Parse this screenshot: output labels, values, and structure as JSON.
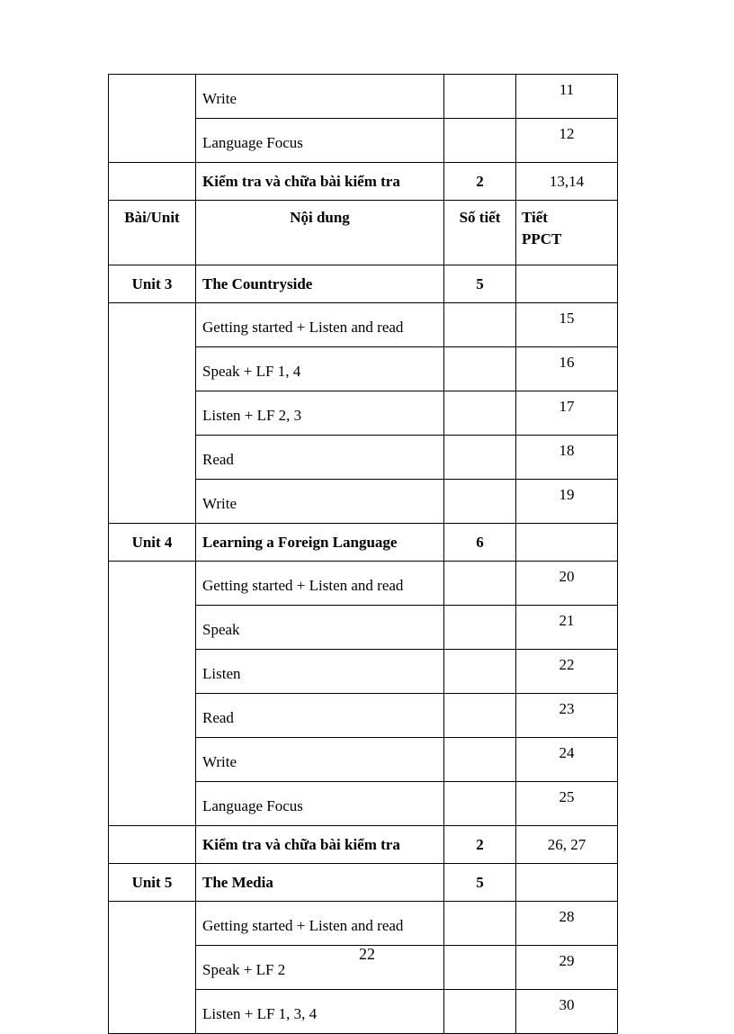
{
  "table": {
    "header": {
      "unit": "Bài/Unit",
      "content": "Nội dung",
      "periods": "Số tiết",
      "ppct_line1": "Tiết",
      "ppct_line2": "PPCT"
    },
    "rows_before_header": [
      {
        "unit": "",
        "content": "Write",
        "bold": false,
        "periods": "",
        "ppct": "11"
      },
      {
        "unit": "",
        "content": "Language Focus",
        "bold": false,
        "periods": "",
        "ppct": "12"
      },
      {
        "unit": "",
        "content": "Kiểm tra và chữa bài kiểm tra",
        "bold": true,
        "periods": "2",
        "ppct": "13,14"
      }
    ],
    "rows": [
      {
        "unit": "Unit 3",
        "content": "The Countryside",
        "bold": true,
        "periods": "5",
        "ppct": ""
      },
      {
        "unit": "",
        "content": "Getting  started + Listen  and read",
        "bold": false,
        "periods": "",
        "ppct": "15"
      },
      {
        "unit": "",
        "content": "Speak + LF 1, 4",
        "bold": false,
        "periods": "",
        "ppct": "16"
      },
      {
        "unit": "",
        "content": "Listen  + LF 2, 3",
        "bold": false,
        "periods": "",
        "ppct": "17"
      },
      {
        "unit": "",
        "content": "Read",
        "bold": false,
        "periods": "",
        "ppct": "18"
      },
      {
        "unit": "",
        "content": "Write",
        "bold": false,
        "periods": "",
        "ppct": "19"
      },
      {
        "unit": "Unit 4",
        "content": "Learning a Foreign Language",
        "bold": true,
        "periods": "6",
        "ppct": ""
      },
      {
        "unit": "",
        "content": "Getting  started + Listen  and read",
        "bold": false,
        "periods": "",
        "ppct": "20"
      },
      {
        "unit": "",
        "content": "Speak",
        "bold": false,
        "periods": "",
        "ppct": "21"
      },
      {
        "unit": "",
        "content": "Listen",
        "bold": false,
        "periods": "",
        "ppct": "22"
      },
      {
        "unit": "",
        "content": "Read",
        "bold": false,
        "periods": "",
        "ppct": "23"
      },
      {
        "unit": "",
        "content": "Write",
        "bold": false,
        "periods": "",
        "ppct": "24"
      },
      {
        "unit": "",
        "content": "Language Focus",
        "bold": false,
        "periods": "",
        "ppct": "25"
      },
      {
        "unit": "",
        "content": "Kiểm tra và chữa bài kiểm tra",
        "bold": true,
        "periods": "2",
        "ppct": "26, 27"
      },
      {
        "unit": "Unit 5",
        "content": "The Media",
        "bold": true,
        "periods": "5",
        "ppct": ""
      },
      {
        "unit": "",
        "content": "Getting  started + Listen  and read",
        "bold": false,
        "periods": "",
        "ppct": "28"
      },
      {
        "unit": "",
        "content": "Speak + LF 2",
        "bold": false,
        "periods": "",
        "ppct": "29"
      },
      {
        "unit": "",
        "content": "Listen  + LF 1, 3, 4",
        "bold": false,
        "periods": "",
        "ppct": "30"
      }
    ]
  },
  "page_number": "22"
}
